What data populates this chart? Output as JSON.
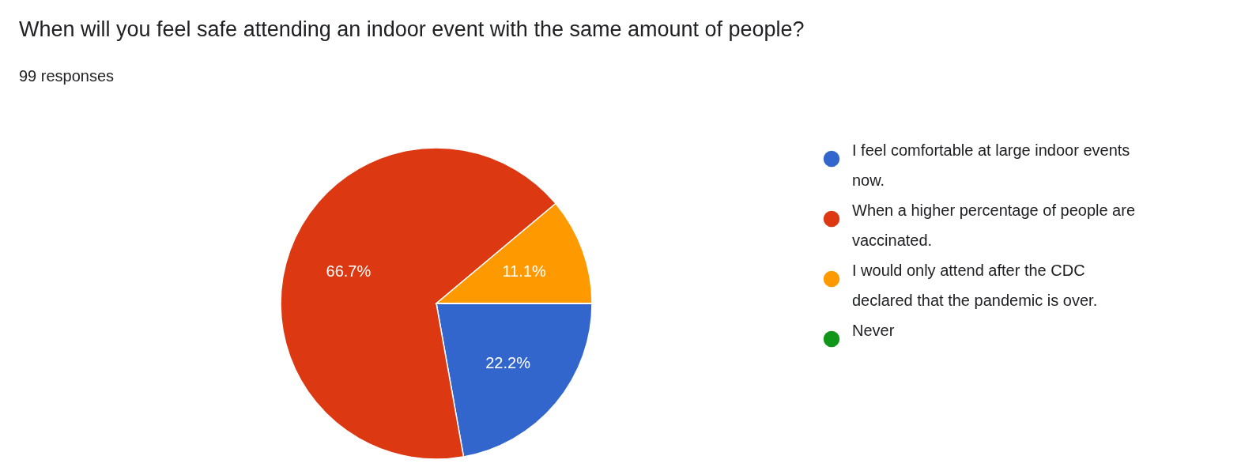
{
  "chart_data": {
    "type": "pie",
    "title": "When will you feel safe attending an indoor event with the same amount of people?",
    "subtitle": "99 responses",
    "categories": [
      "I feel comfortable at large indoor events now.",
      "When a higher percentage of people are vaccinated.",
      "I would only attend after the CDC declared that the pandemic is over.",
      "Never"
    ],
    "values": [
      22.2,
      66.7,
      11.1,
      0
    ],
    "colors": [
      "#3366cc",
      "#dc3912",
      "#ff9900",
      "#109618"
    ],
    "value_labels": [
      "22.2%",
      "66.7%",
      "11.1%",
      null
    ],
    "legend": "right"
  }
}
